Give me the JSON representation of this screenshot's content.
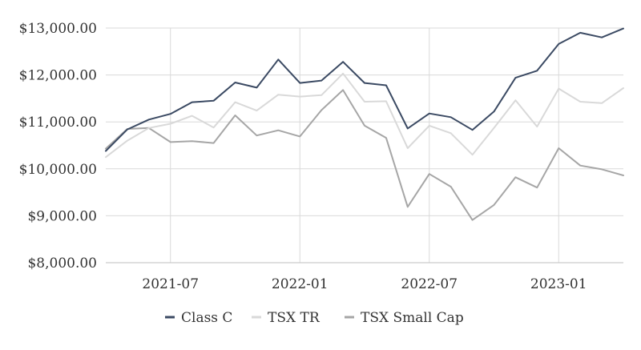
{
  "chart_data": {
    "type": "line",
    "title": "",
    "xlabel": "",
    "ylabel": "",
    "x": [
      "2021-04",
      "2021-05",
      "2021-06",
      "2021-07",
      "2021-08",
      "2021-09",
      "2021-10",
      "2021-11",
      "2021-12",
      "2022-01",
      "2022-02",
      "2022-03",
      "2022-04",
      "2022-05",
      "2022-06",
      "2022-07",
      "2022-08",
      "2022-09",
      "2022-10",
      "2022-11",
      "2022-12",
      "2023-01",
      "2023-02",
      "2023-03",
      "2023-04"
    ],
    "x_ticks": [
      "2021-07",
      "2022-01",
      "2022-07",
      "2023-01"
    ],
    "y_ticks": [
      "$8,000.00",
      "$9,000.00",
      "$10,000.00",
      "$11,000.00",
      "$12,000.00",
      "$13,000.00"
    ],
    "ylim": [
      8000,
      13000
    ],
    "grid": true,
    "legend_position": "bottom",
    "series": [
      {
        "name": "Class C",
        "color": "#3b4a63",
        "values": [
          10380,
          10840,
          11050,
          11170,
          11420,
          11450,
          11840,
          11730,
          12330,
          11830,
          11880,
          12280,
          11830,
          11780,
          10860,
          11180,
          11100,
          10830,
          11220,
          11940,
          12090,
          12660,
          12900,
          12800,
          12990
        ]
      },
      {
        "name": "TSX TR",
        "color": "#d9d9d9",
        "values": [
          10250,
          10600,
          10870,
          10960,
          11130,
          10880,
          11420,
          11240,
          11580,
          11540,
          11570,
          12030,
          11430,
          11440,
          10440,
          10920,
          10760,
          10300,
          10870,
          11460,
          10900,
          11710,
          11430,
          11400,
          11720
        ]
      },
      {
        "name": "TSX Small Cap",
        "color": "#a6a6a6",
        "values": [
          10430,
          10850,
          10870,
          10570,
          10590,
          10550,
          11140,
          10710,
          10820,
          10690,
          11250,
          11680,
          10920,
          10660,
          9190,
          9890,
          9620,
          8910,
          9230,
          9820,
          9600,
          10440,
          10070,
          9990,
          9860
        ]
      }
    ]
  }
}
